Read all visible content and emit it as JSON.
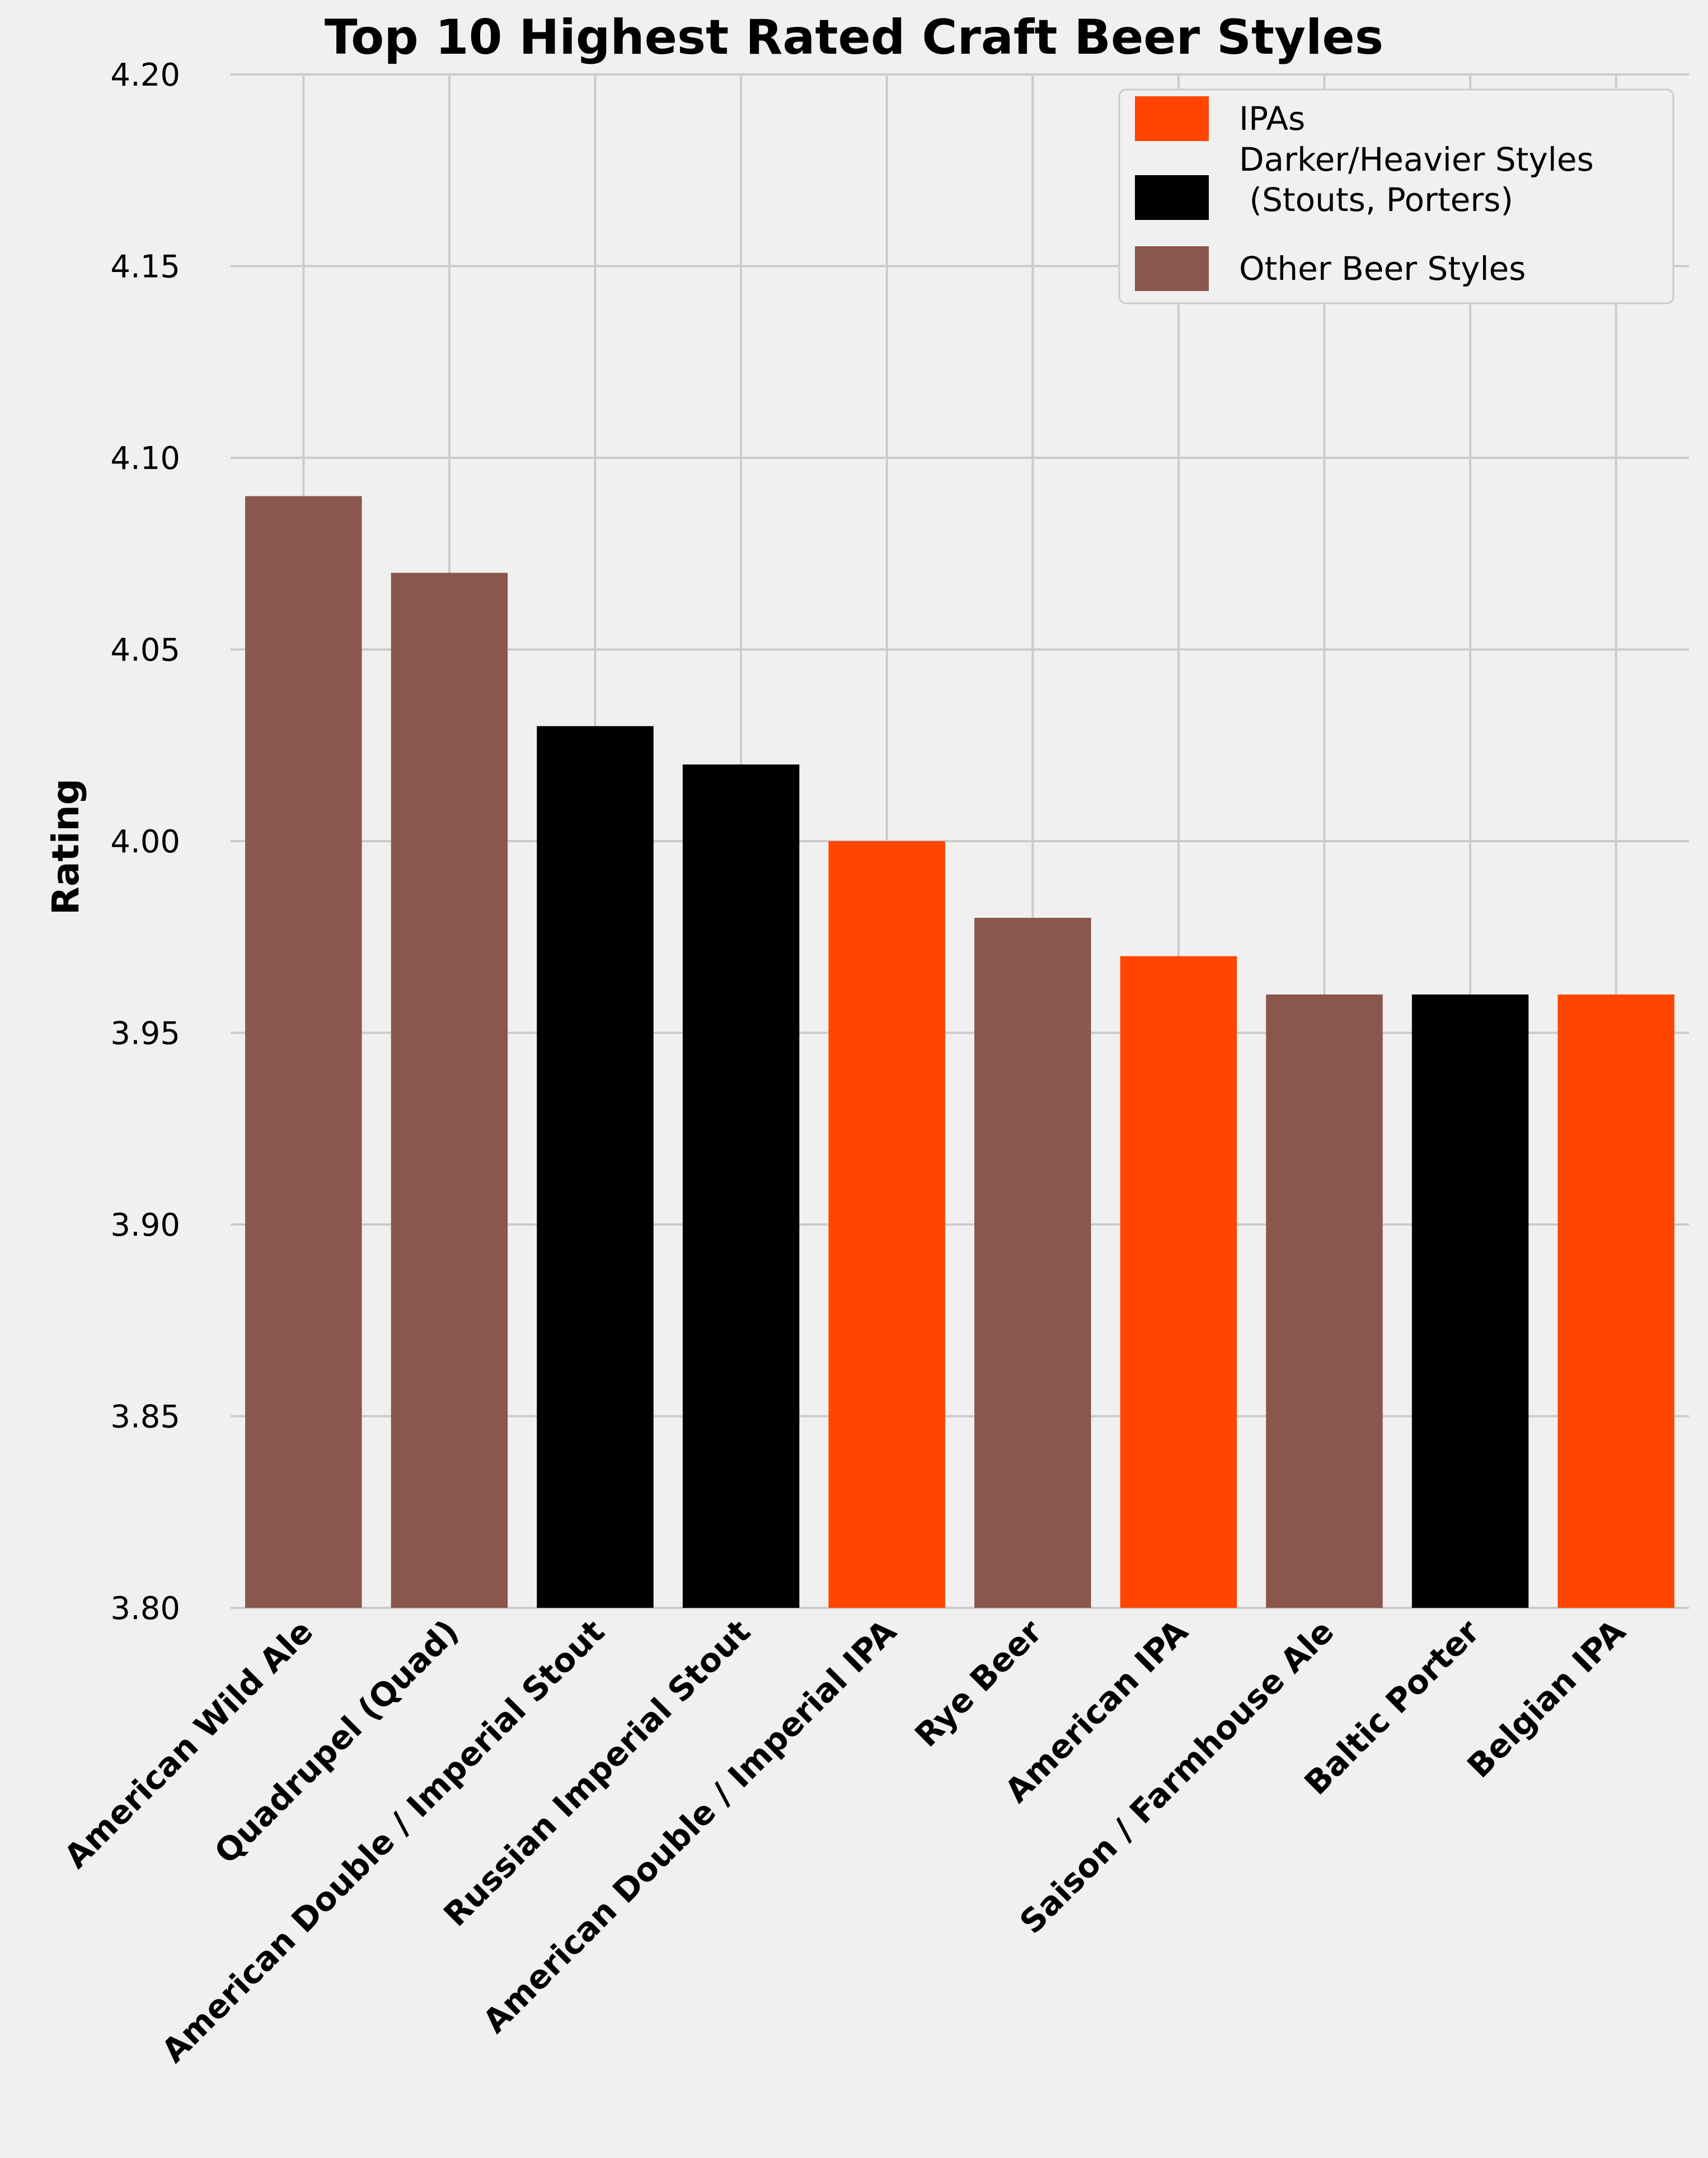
{
  "chart_data": {
    "type": "bar",
    "title": "Top 10 Highest Rated Craft Beer Styles",
    "xlabel": "",
    "ylabel": "Rating",
    "ylim": [
      3.8,
      4.2
    ],
    "yticks": [
      "3.80",
      "3.85",
      "3.90",
      "3.95",
      "4.00",
      "4.05",
      "4.10",
      "4.15",
      "4.20"
    ],
    "grid": true,
    "legend_position": "top-right",
    "categories": [
      "American Wild Ale",
      "Quadrupel (Quad)",
      "American Double / Imperial Stout",
      "Russian Imperial Stout",
      "American Double / Imperial IPA",
      "Rye Beer",
      "American IPA",
      "Saison / Farmhouse Ale",
      "Baltic Porter",
      "Belgian IPA"
    ],
    "values": [
      4.09,
      4.07,
      4.03,
      4.02,
      4.0,
      3.98,
      3.97,
      3.96,
      3.96,
      3.96
    ],
    "groups": [
      "other",
      "other",
      "dark",
      "dark",
      "ipa",
      "other",
      "ipa",
      "other",
      "dark",
      "ipa"
    ],
    "legend": [
      {
        "key": "ipa",
        "label": "IPAs",
        "color": "#ff4500"
      },
      {
        "key": "dark",
        "label": "Darker/Heavier Styles\n (Stouts, Porters)",
        "color": "#000000"
      },
      {
        "key": "other",
        "label": "Other Beer Styles",
        "color": "#8b564b"
      }
    ],
    "colors": {
      "background": "#f0f0f0",
      "grid": "#cbcbcb"
    }
  }
}
